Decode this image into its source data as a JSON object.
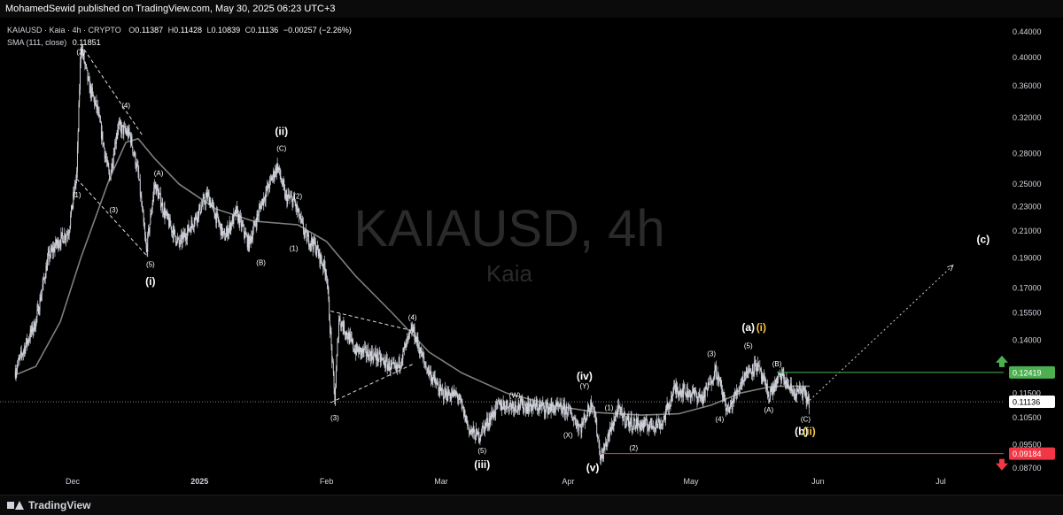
{
  "header": {
    "publisher_line": "MohamedSewid published on TradingView.com, May 30, 2025 06:23 UTC+3"
  },
  "legend": {
    "symbol": "KAIAUSD · Kaia · 4h · CRYPTO",
    "o_label": "O",
    "o": "0.11387",
    "h_label": "H",
    "h": "0.11428",
    "l_label": "L",
    "l": "0.10839",
    "c_label": "C",
    "c": "0.11136",
    "change": "−0.00257 (−2.26%)",
    "sma_label": "SMA (111, close)",
    "sma_value": "0.11851"
  },
  "watermark": {
    "title": "KAIAUSD, 4h",
    "subtitle": "Kaia"
  },
  "footer": {
    "brand": "TradingView"
  },
  "colors": {
    "background": "#000000",
    "candles": "#d1d4dc",
    "sma": "#7e7e7e",
    "target_up": "#4caf50",
    "target_down": "#f23645",
    "wave_accent": "#f5c542"
  },
  "chart_data": {
    "type": "candlestick",
    "title": "KAIAUSD · Kaia · 4h · CRYPTO",
    "yscale": "log",
    "ylim": [
      0.0845,
      0.452
    ],
    "y_ticks": [
      "0.44000",
      "0.40000",
      "0.36000",
      "0.32000",
      "0.28000",
      "0.25000",
      "0.23000",
      "0.21000",
      "0.19000",
      "0.17000",
      "0.15500",
      "0.14000",
      "0.11500",
      "0.10500",
      "0.09500",
      "0.08700"
    ],
    "x_ticks": [
      "Dec",
      "2025",
      "Feb",
      "Mar",
      "Apr",
      "May",
      "Jun",
      "Jul"
    ],
    "price_path": [
      [
        "Nov 17",
        0.125
      ],
      [
        "Nov 19",
        0.135
      ],
      [
        "Nov 22",
        0.15
      ],
      [
        "Nov 25",
        0.19
      ],
      [
        "Nov 27",
        0.2
      ],
      [
        "Nov 30",
        0.21
      ],
      [
        "Dec 2",
        0.26
      ],
      [
        "Dec 3",
        0.42
      ],
      [
        "Dec 5",
        0.36
      ],
      [
        "Dec 7",
        0.33
      ],
      [
        "Dec 10",
        0.255
      ],
      [
        "Dec 12",
        0.31
      ],
      [
        "Dec 15",
        0.3
      ],
      [
        "Dec 17",
        0.26
      ],
      [
        "Dec 19",
        0.195
      ],
      [
        "Dec 21",
        0.25
      ],
      [
        "Dec 24",
        0.22
      ],
      [
        "Dec 27",
        0.2
      ],
      [
        "Dec 30",
        0.215
      ],
      [
        "Jan 3",
        0.24
      ],
      [
        "Jan 7",
        0.205
      ],
      [
        "Jan 10",
        0.225
      ],
      [
        "Jan 13",
        0.2
      ],
      [
        "Jan 16",
        0.232
      ],
      [
        "Jan 20",
        0.268
      ],
      [
        "Jan 22",
        0.238
      ],
      [
        "Jan 24",
        0.235
      ],
      [
        "Jan 27",
        0.205
      ],
      [
        "Jan 29",
        0.2
      ],
      [
        "Feb 1",
        0.18
      ],
      [
        "Feb 3",
        0.112
      ],
      [
        "Feb 4",
        0.152
      ],
      [
        "Feb 8",
        0.135
      ],
      [
        "Feb 13",
        0.132
      ],
      [
        "Feb 18",
        0.125
      ],
      [
        "Feb 22",
        0.146
      ],
      [
        "Feb 25",
        0.128
      ],
      [
        "Mar 1",
        0.115
      ],
      [
        "Mar 5",
        0.114
      ],
      [
        "Mar 8",
        0.1
      ],
      [
        "Mar 10",
        0.098
      ],
      [
        "Mar 15",
        0.11
      ],
      [
        "Mar 20",
        0.11
      ],
      [
        "Mar 27",
        0.109
      ],
      [
        "Apr 1",
        0.108
      ],
      [
        "Apr 4",
        0.101
      ],
      [
        "Apr 7",
        0.112
      ],
      [
        "Apr 9",
        0.09
      ],
      [
        "Apr 13",
        0.108
      ],
      [
        "Apr 16",
        0.103
      ],
      [
        "Apr 20",
        0.102
      ],
      [
        "Apr 24",
        0.103
      ],
      [
        "Apr 27",
        0.117
      ],
      [
        "May 1",
        0.115
      ],
      [
        "May 4",
        0.113
      ],
      [
        "May 7",
        0.126
      ],
      [
        "May 10",
        0.107
      ],
      [
        "May 14",
        0.123
      ],
      [
        "May 17",
        0.128
      ],
      [
        "May 20",
        0.114
      ],
      [
        "May 23",
        0.123
      ],
      [
        "May 26",
        0.115
      ],
      [
        "May 28",
        0.116
      ],
      [
        "May 30",
        0.111
      ]
    ],
    "series": [
      {
        "name": "SMA (111, close)",
        "type": "line",
        "points": [
          [
            "Nov 17",
            0.123
          ],
          [
            "Nov 22",
            0.127
          ],
          [
            "Nov 28",
            0.15
          ],
          [
            "Dec 3",
            0.19
          ],
          [
            "Dec 10",
            0.255
          ],
          [
            "Dec 14",
            0.292
          ],
          [
            "Dec 17",
            0.296
          ],
          [
            "Dec 21",
            0.275
          ],
          [
            "Dec 27",
            0.25
          ],
          [
            "Jan 5",
            0.228
          ],
          [
            "Jan 14",
            0.218
          ],
          [
            "Jan 25",
            0.215
          ],
          [
            "Feb 1",
            0.202
          ],
          [
            "Feb 8",
            0.178
          ],
          [
            "Feb 17",
            0.155
          ],
          [
            "Feb 26",
            0.134
          ],
          [
            "Mar 6",
            0.124
          ],
          [
            "Mar 17",
            0.115
          ],
          [
            "Mar 28",
            0.11
          ],
          [
            "Apr 8",
            0.107
          ],
          [
            "Apr 19",
            0.106
          ],
          [
            "Apr 28",
            0.1065
          ],
          [
            "May 6",
            0.11
          ],
          [
            "May 13",
            0.115
          ],
          [
            "May 21",
            0.118
          ],
          [
            "May 30",
            0.118
          ]
        ]
      }
    ],
    "price_lines": [
      {
        "name": "last",
        "value": 0.11136,
        "label": "0.11136",
        "style": "dotted"
      },
      {
        "name": "target_up",
        "value": 0.12419,
        "label": "0.12419",
        "from": "May 22"
      },
      {
        "name": "target_down",
        "value": 0.09184,
        "label": "0.09184",
        "from": "Apr 9"
      }
    ],
    "trendlines": [
      {
        "from": [
          "Dec 3",
          0.42
        ],
        "to": [
          "Dec 18",
          0.3
        ]
      },
      {
        "from": [
          "Dec 2",
          0.255
        ],
        "to": [
          "Dec 19",
          0.192
        ]
      },
      {
        "from": [
          "Feb 2",
          0.156
        ],
        "to": [
          "Feb 22",
          0.145
        ]
      },
      {
        "from": [
          "Feb 2",
          0.111
        ],
        "to": [
          "Feb 22",
          0.128
        ]
      }
    ],
    "projection": {
      "from": [
        "May 30",
        0.112
      ],
      "to": [
        "Jul 4",
        0.185
      ],
      "label": "(c)"
    },
    "annotations": [
      {
        "text": "(2)",
        "x": "Dec 3",
        "y": 0.405,
        "color": "#ffffff"
      },
      {
        "text": "(1)",
        "x": "Dec 2",
        "y": 0.238,
        "color": "#ffffff"
      },
      {
        "text": "(3)",
        "x": "Dec 11",
        "y": 0.225,
        "color": "#ffffff"
      },
      {
        "text": "(4)",
        "x": "Dec 14",
        "y": 0.332,
        "color": "#ffffff"
      },
      {
        "text": "(A)",
        "x": "Dec 22",
        "y": 0.258,
        "color": "#ffffff"
      },
      {
        "text": "(5)",
        "x": "Dec 20",
        "y": 0.184,
        "color": "#ffffff"
      },
      {
        "text": "(i)",
        "x": "Dec 20",
        "y": 0.172,
        "color": "#ffffff"
      },
      {
        "text": "(ii)",
        "x": "Jan 21",
        "y": 0.3,
        "color": "#ffffff"
      },
      {
        "text": "(C)",
        "x": "Jan 21",
        "y": 0.283,
        "color": "#ffffff"
      },
      {
        "text": "(2)",
        "x": "Jan 25",
        "y": 0.237,
        "color": "#ffffff"
      },
      {
        "text": "(B)",
        "x": "Jan 16",
        "y": 0.185,
        "color": "#ffffff"
      },
      {
        "text": "(1)",
        "x": "Jan 24",
        "y": 0.195,
        "color": "#ffffff"
      },
      {
        "text": "(3)",
        "x": "Feb 3",
        "y": 0.104,
        "color": "#ffffff"
      },
      {
        "text": "(4)",
        "x": "Feb 22",
        "y": 0.151,
        "color": "#ffffff"
      },
      {
        "text": "(5)",
        "x": "Mar 11",
        "y": 0.092,
        "color": "#ffffff"
      },
      {
        "text": "(iii)",
        "x": "Mar 11",
        "y": 0.087,
        "color": "#ffffff"
      },
      {
        "text": "(W)",
        "x": "Mar 19",
        "y": 0.113,
        "color": "#ffffff"
      },
      {
        "text": "(X)",
        "x": "Apr 1",
        "y": 0.0975,
        "color": "#ffffff"
      },
      {
        "text": "(iv)",
        "x": "Apr 5",
        "y": 0.121,
        "color": "#ffffff"
      },
      {
        "text": "(Y)",
        "x": "Apr 5",
        "y": 0.117,
        "color": "#ffffff"
      },
      {
        "text": "(1)",
        "x": "Apr 11",
        "y": 0.108,
        "color": "#ffffff"
      },
      {
        "text": "(2)",
        "x": "Apr 17",
        "y": 0.093,
        "color": "#ffffff"
      },
      {
        "text": "(v)",
        "x": "Apr 7",
        "y": 0.086,
        "color": "#ffffff"
      },
      {
        "text": "(3)",
        "x": "May 6",
        "y": 0.132,
        "color": "#ffffff"
      },
      {
        "text": "(4)",
        "x": "May 8",
        "y": 0.1035,
        "color": "#ffffff"
      },
      {
        "text": "(5)",
        "x": "May 15",
        "y": 0.136,
        "color": "#ffffff"
      },
      {
        "text": "(a)",
        "x": "May 15",
        "y": 0.145,
        "color": "#ffffff"
      },
      {
        "text": "(i)",
        "x": "May 16",
        "y": 0.145,
        "color": "#f5c542"
      },
      {
        "text": "(A)",
        "x": "May 20",
        "y": 0.107,
        "color": "#ffffff"
      },
      {
        "text": "(B)",
        "x": "May 22",
        "y": 0.127,
        "color": "#ffffff"
      },
      {
        "text": "(C)",
        "x": "May 29",
        "y": 0.1035,
        "color": "#ffffff"
      },
      {
        "text": "(b)",
        "x": "May 28",
        "y": 0.0985,
        "color": "#ffffff"
      },
      {
        "text": "(ii)",
        "x": "May 29",
        "y": 0.0985,
        "color": "#f5c542"
      }
    ]
  }
}
